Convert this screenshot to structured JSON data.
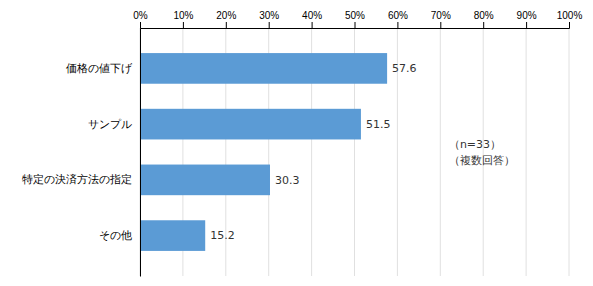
{
  "chart_data": {
    "type": "bar",
    "orientation": "horizontal",
    "categories": [
      "価格の値下げ",
      "サンプル",
      "特定の決済方法の指定",
      "その他"
    ],
    "values": [
      57.6,
      51.5,
      30.3,
      15.2
    ],
    "color": "#5b9bd5",
    "xlim": [
      0,
      100
    ],
    "xticks": [
      {
        "value": 0,
        "label": "0%"
      },
      {
        "value": 10,
        "label": "10%"
      },
      {
        "value": 20,
        "label": "20%"
      },
      {
        "value": 30,
        "label": "30%"
      },
      {
        "value": 40,
        "label": "40%"
      },
      {
        "value": 50,
        "label": "50%"
      },
      {
        "value": 60,
        "label": "60%"
      },
      {
        "value": 70,
        "label": "70%"
      },
      {
        "value": 80,
        "label": "80%"
      },
      {
        "value": 90,
        "label": "90%"
      },
      {
        "value": 100,
        "label": "100%"
      }
    ],
    "grid": true,
    "data_labels": true,
    "annotations": [
      "（n=33）",
      "（複数回答）"
    ]
  }
}
